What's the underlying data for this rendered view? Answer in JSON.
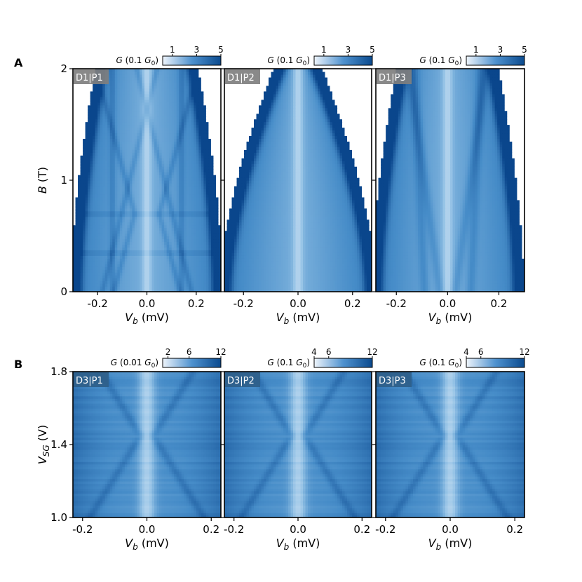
{
  "chart_data": [
    {
      "type": "heatmap",
      "panel": "A",
      "badge": "D1|P1",
      "xlabel": "V_b (mV)",
      "ylabel": "B (T)",
      "xlim": [
        -0.3,
        0.3
      ],
      "ylim": [
        0,
        2
      ],
      "xticks": [
        -0.2,
        0.0,
        0.2
      ],
      "xtick_labels": [
        "-0.2",
        "0.0",
        "0.2"
      ],
      "yticks": [
        0,
        1,
        2
      ],
      "ytick_labels": [
        "0",
        "1",
        "2"
      ],
      "gap": {
        "halfwidth_at_B0": 0.28,
        "halfwidth_at_Bmax": 0.18
      },
      "colorbar": {
        "label": "G (0.1 G_0)",
        "ticks": [
          1,
          3,
          5
        ],
        "tick_labels": [
          "1",
          "3",
          "5"
        ],
        "range": [
          0.2,
          5
        ]
      }
    },
    {
      "type": "heatmap",
      "panel": "A",
      "badge": "D1|P2",
      "xlabel": "V_b (mV)",
      "ylabel": "",
      "xlim": [
        -0.27,
        0.27
      ],
      "ylim": [
        0,
        2
      ],
      "xticks": [
        -0.2,
        0.0,
        0.2
      ],
      "xtick_labels": [
        "-0.2",
        "0.0",
        "0.2"
      ],
      "yticks": [
        0,
        1,
        2
      ],
      "ytick_labels": [],
      "gap": {
        "halfwidth_at_B0": 0.26,
        "halfwidth_at_Bmax": 0.06
      },
      "colorbar": {
        "label": "G (0.1 G_0)",
        "ticks": [
          1,
          3,
          5
        ],
        "tick_labels": [
          "1",
          "3",
          "5"
        ],
        "range": [
          0.2,
          5
        ]
      }
    },
    {
      "type": "heatmap",
      "panel": "A",
      "badge": "D1|P3",
      "xlabel": "V_b (mV)",
      "ylabel": "",
      "xlim": [
        -0.28,
        0.3
      ],
      "ylim": [
        0,
        2
      ],
      "xticks": [
        -0.2,
        0.0,
        0.2
      ],
      "xtick_labels": [
        "-0.2",
        "0.0",
        "0.2"
      ],
      "yticks": [
        0,
        1,
        2
      ],
      "ytick_labels": [],
      "gap": {
        "halfwidth_at_B0": 0.27,
        "halfwidth_at_Bmax": 0.17
      },
      "colorbar": {
        "label": "G (0.1 G_0)",
        "ticks": [
          1,
          3,
          5
        ],
        "tick_labels": [
          "1",
          "3",
          "5"
        ],
        "range": [
          0.2,
          5
        ]
      }
    },
    {
      "type": "heatmap",
      "panel": "B",
      "badge": "D3|P1",
      "xlabel": "V_b (mV)",
      "ylabel": "V_SG (V)",
      "xlim": [
        -0.23,
        0.23
      ],
      "ylim": [
        1.0,
        1.8
      ],
      "xticks": [
        -0.2,
        0.0,
        0.2
      ],
      "xtick_labels": [
        "-0.2",
        "0.0",
        "0.2"
      ],
      "yticks": [
        1.0,
        1.4,
        1.8
      ],
      "ytick_labels": [
        "1.0",
        "1.4",
        "1.8"
      ],
      "colorbar": {
        "label": "G (0.01 G_0)",
        "ticks": [
          2,
          6,
          12
        ],
        "tick_labels": [
          "2",
          "6",
          "12"
        ],
        "range": [
          1,
          12
        ]
      }
    },
    {
      "type": "heatmap",
      "panel": "B",
      "badge": "D3|P2",
      "xlabel": "V_b (mV)",
      "ylabel": "",
      "xlim": [
        -0.23,
        0.23
      ],
      "ylim": [
        1.0,
        1.8
      ],
      "xticks": [
        -0.2,
        0.0,
        0.2
      ],
      "xtick_labels": [
        "-0.2",
        "0.0",
        "0.2"
      ],
      "yticks": [
        1.0,
        1.4,
        1.8
      ],
      "ytick_labels": [],
      "colorbar": {
        "label": "G (0.1 G_0)",
        "ticks": [
          4,
          6,
          12
        ],
        "tick_labels": [
          "4",
          "6",
          "12"
        ],
        "range": [
          4,
          12
        ]
      }
    },
    {
      "type": "heatmap",
      "panel": "B",
      "badge": "D3|P3",
      "xlabel": "V_b (mV)",
      "ylabel": "",
      "xlim": [
        -0.23,
        0.23
      ],
      "ylim": [
        1.0,
        1.8
      ],
      "xticks": [
        -0.2,
        0.0,
        0.2
      ],
      "xtick_labels": [
        "-0.2",
        "0.0",
        "0.2"
      ],
      "yticks": [
        1.0,
        1.4,
        1.8
      ],
      "ytick_labels": [],
      "colorbar": {
        "label": "G (0.1 G_0)",
        "ticks": [
          4,
          6,
          12
        ],
        "tick_labels": [
          "4",
          "6",
          "12"
        ],
        "range": [
          4,
          12
        ]
      }
    }
  ],
  "labels": {
    "panel_a": "A",
    "panel_b": "B"
  },
  "colors": {
    "low": "#ecf3fb",
    "mid": "#4d8fcc",
    "high": "#0b4a8e",
    "frame": "#000000"
  }
}
